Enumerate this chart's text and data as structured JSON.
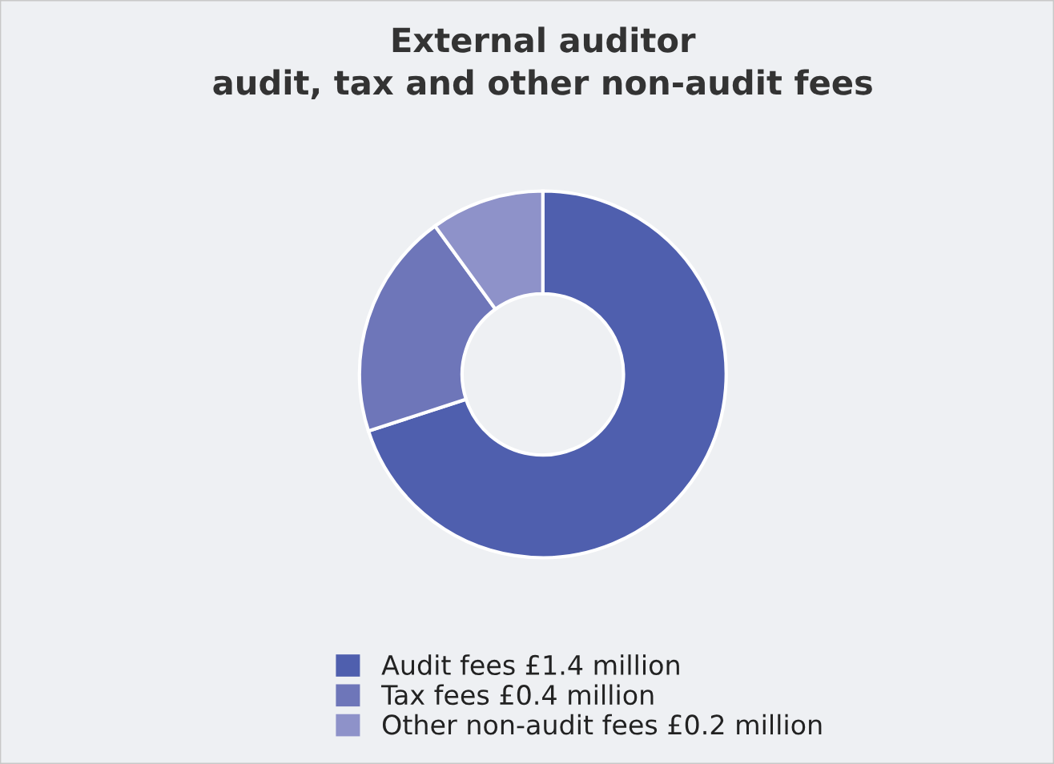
{
  "chart_data": {
    "type": "donut",
    "title": "External auditor\naudit, tax and other non-audit fees",
    "categories": [
      "Audit fees £1.4 million",
      "Tax fees £0.4 million",
      "Other non-audit fees £0.2 million"
    ],
    "values": [
      70,
      20,
      10
    ],
    "colors": [
      "#4f5fae",
      "#6e76b9",
      "#8e92c9"
    ],
    "legend": "bottom"
  }
}
